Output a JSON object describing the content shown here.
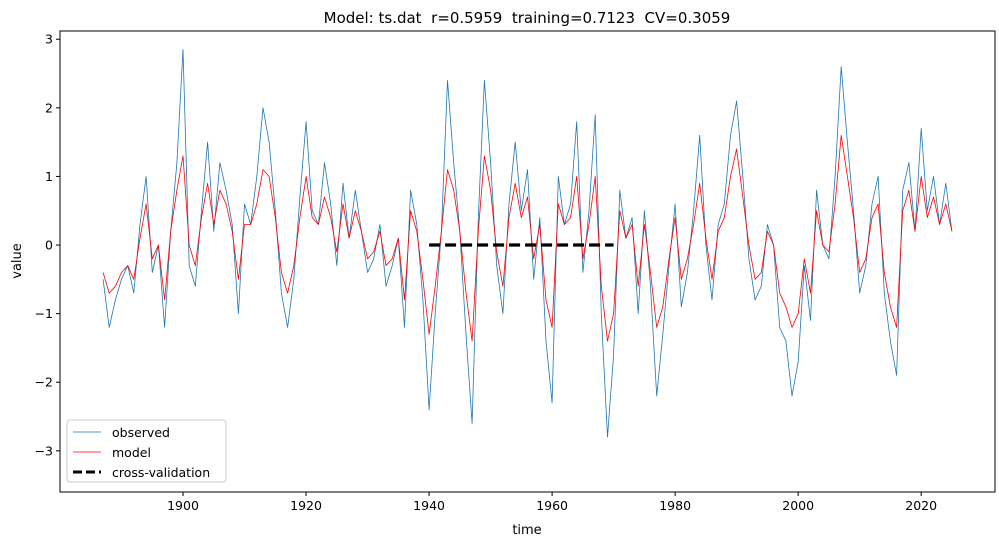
{
  "chart_data": {
    "type": "line",
    "title": "Model: ts.dat  r=0.5959  training=0.7123  CV=0.3059",
    "xlabel": "time",
    "ylabel": "value",
    "xlim": [
      1880,
      2032
    ],
    "ylim": [
      -3.6,
      3.12
    ],
    "xticks": [
      1900,
      1920,
      1940,
      1960,
      1980,
      2000,
      2020
    ],
    "yticks": [
      -3,
      -2,
      -1,
      0,
      1,
      2,
      3
    ],
    "ytick_labels": [
      "−3",
      "−2",
      "−1",
      "0",
      "1",
      "2",
      "3"
    ],
    "grid": false,
    "legend_position": "lower-left",
    "start_year": 1887,
    "series": [
      {
        "name": "observed",
        "color": "#1f77b4",
        "style": "solid",
        "values": [
          -0.5,
          -1.2,
          -0.8,
          -0.5,
          -0.3,
          -0.7,
          0.3,
          1.0,
          -0.4,
          0.0,
          -1.2,
          0.2,
          1.2,
          2.85,
          -0.3,
          -0.6,
          0.5,
          1.5,
          0.2,
          1.2,
          0.8,
          0.3,
          -1.0,
          0.6,
          0.3,
          1.0,
          2.0,
          1.5,
          0.5,
          -0.7,
          -1.2,
          -0.5,
          0.7,
          1.8,
          0.5,
          0.3,
          1.2,
          0.6,
          -0.3,
          0.9,
          0.1,
          0.8,
          0.2,
          -0.4,
          -0.2,
          0.3,
          -0.6,
          -0.3,
          0.1,
          -1.2,
          0.8,
          0.3,
          -0.8,
          -2.4,
          -1.0,
          0.2,
          2.4,
          1.2,
          0.2,
          -1.3,
          -2.6,
          0.4,
          2.4,
          1.2,
          -0.3,
          -1.0,
          0.6,
          1.5,
          0.5,
          1.1,
          -0.5,
          0.4,
          -1.4,
          -2.3,
          1.0,
          0.3,
          0.6,
          1.8,
          -0.4,
          0.5,
          1.9,
          -1.0,
          -2.8,
          -1.6,
          0.8,
          0.1,
          0.4,
          -1.0,
          0.5,
          -0.6,
          -2.2,
          -1.3,
          -0.3,
          0.6,
          -0.9,
          -0.4,
          0.5,
          1.6,
          0.0,
          -0.8,
          0.3,
          0.6,
          1.6,
          2.1,
          1.0,
          -0.2,
          -0.8,
          -0.6,
          0.3,
          0.0,
          -1.2,
          -1.4,
          -2.2,
          -1.7,
          -0.3,
          -1.1,
          0.8,
          0.0,
          -0.2,
          1.0,
          2.6,
          1.5,
          0.5,
          -0.7,
          -0.3,
          0.6,
          1.0,
          -0.7,
          -1.4,
          -1.9,
          0.8,
          1.2,
          0.2,
          1.7,
          0.5,
          1.0,
          0.3,
          0.9,
          0.2
        ]
      },
      {
        "name": "model",
        "color": "#ff0000",
        "style": "solid",
        "values": [
          -0.4,
          -0.7,
          -0.6,
          -0.4,
          -0.3,
          -0.5,
          0.1,
          0.6,
          -0.2,
          0.0,
          -0.8,
          0.2,
          0.8,
          1.3,
          0.0,
          -0.3,
          0.4,
          0.9,
          0.3,
          0.8,
          0.6,
          0.2,
          -0.5,
          0.3,
          0.3,
          0.6,
          1.1,
          1.0,
          0.4,
          -0.4,
          -0.7,
          -0.3,
          0.4,
          1.0,
          0.4,
          0.3,
          0.7,
          0.4,
          -0.1,
          0.6,
          0.1,
          0.5,
          0.2,
          -0.2,
          -0.1,
          0.2,
          -0.3,
          -0.2,
          0.1,
          -0.8,
          0.5,
          0.2,
          -0.5,
          -1.3,
          -0.6,
          0.2,
          1.1,
          0.8,
          0.2,
          -0.7,
          -1.4,
          0.2,
          1.3,
          0.8,
          -0.1,
          -0.6,
          0.4,
          0.9,
          0.4,
          0.7,
          -0.2,
          0.3,
          -0.8,
          -1.2,
          0.6,
          0.3,
          0.4,
          1.0,
          -0.2,
          0.3,
          1.0,
          -0.6,
          -1.4,
          -1.0,
          0.5,
          0.1,
          0.3,
          -0.6,
          0.3,
          -0.4,
          -1.2,
          -0.9,
          -0.2,
          0.4,
          -0.5,
          -0.2,
          0.3,
          0.9,
          0.1,
          -0.5,
          0.2,
          0.4,
          1.0,
          1.4,
          0.7,
          0.0,
          -0.5,
          -0.4,
          0.2,
          0.0,
          -0.7,
          -0.9,
          -1.2,
          -1.0,
          -0.2,
          -0.7,
          0.5,
          0.0,
          -0.1,
          0.6,
          1.6,
          1.0,
          0.4,
          -0.4,
          -0.2,
          0.4,
          0.6,
          -0.4,
          -0.9,
          -1.2,
          0.5,
          0.8,
          0.2,
          1.0,
          0.4,
          0.7,
          0.3,
          0.6,
          0.2
        ]
      },
      {
        "name": "cross-validation",
        "color": "#000000",
        "style": "dashed",
        "x": [
          1940,
          1970
        ],
        "y": [
          0,
          0
        ]
      }
    ]
  }
}
